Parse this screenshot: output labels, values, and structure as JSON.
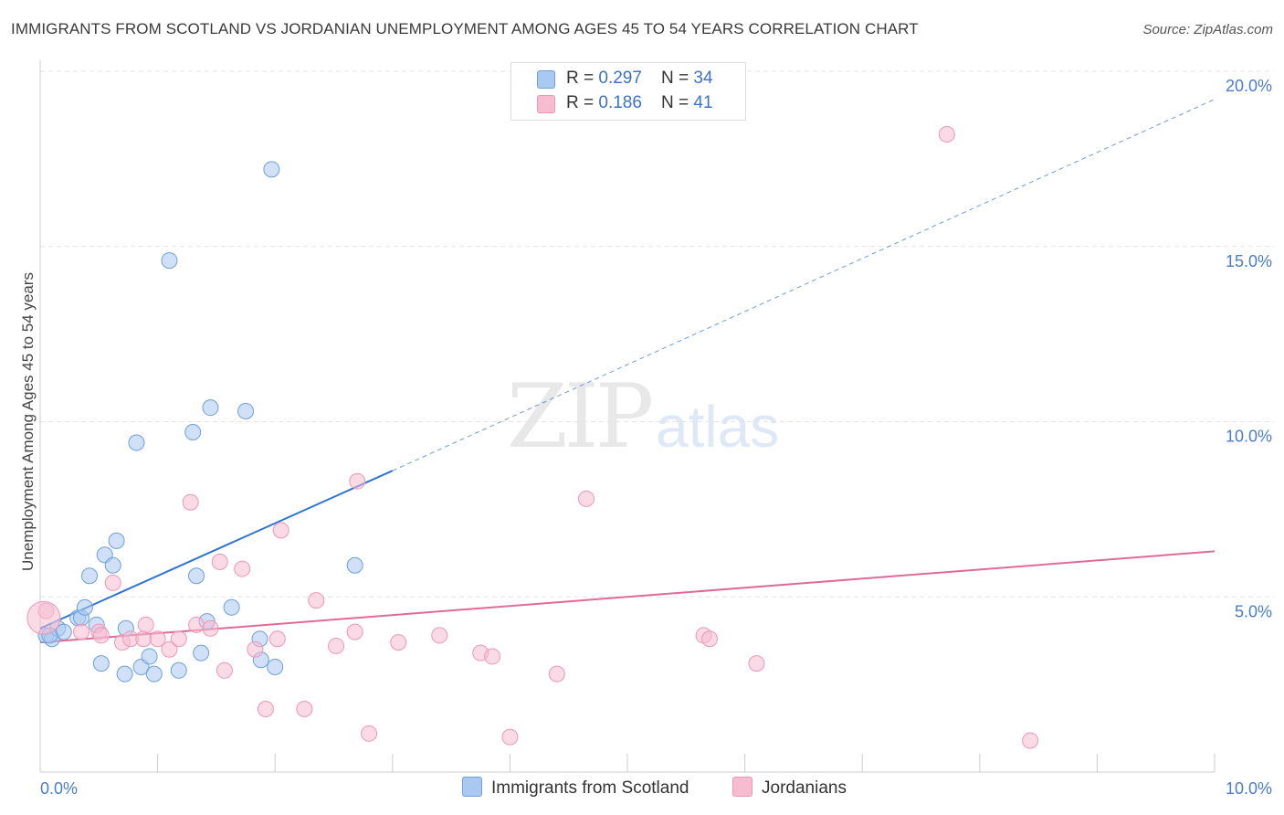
{
  "header": {
    "title": "IMMIGRANTS FROM SCOTLAND VS JORDANIAN UNEMPLOYMENT AMONG AGES 45 TO 54 YEARS CORRELATION CHART",
    "source": "Source: ZipAtlas.com"
  },
  "watermark": {
    "zip": "ZIP",
    "atlas": "atlas"
  },
  "legend": {
    "scotland": {
      "r_label": "R = ",
      "r_value": "0.297",
      "n_label": "N = ",
      "n_value": "34"
    },
    "jordanians": {
      "r_label": "R = ",
      "r_value": "0.186",
      "n_label": "N = ",
      "n_value": "41"
    }
  },
  "bottom_legend": {
    "scotland": "Immigrants from Scotland",
    "jordanians": "Jordanians"
  },
  "colors": {
    "scotland_fill": "#aac8f0",
    "scotland_stroke": "#6f9fdd",
    "scotland_line": "#2f74d0",
    "jordanians_fill": "#f6bcd0",
    "jordanians_stroke": "#ee97b5",
    "jordanians_line": "#e06a96",
    "tick_text": "#4a7ccc",
    "grid": "#e4e4e4"
  },
  "chart_data": {
    "type": "scatter",
    "title": "IMMIGRANTS FROM SCOTLAND VS JORDANIAN UNEMPLOYMENT AMONG AGES 45 TO 54 YEARS CORRELATION CHART",
    "xlabel": "",
    "ylabel": "Unemployment Among Ages 45 to 54 years",
    "xlim": [
      0,
      10
    ],
    "ylim": [
      0,
      20
    ],
    "x_tick_labels": [
      "0.0%",
      "10.0%"
    ],
    "y_ticks": [
      5,
      10,
      15,
      20
    ],
    "y_tick_labels": [
      "5.0%",
      "10.0%",
      "15.0%",
      "20.0%"
    ],
    "grid": true,
    "legend_position": "top-center",
    "series": [
      {
        "name": "Immigrants from Scotland",
        "points": [
          [
            0.05,
            3.9
          ],
          [
            0.1,
            3.8
          ],
          [
            0.15,
            4.1
          ],
          [
            0.2,
            4.0
          ],
          [
            0.32,
            4.4
          ],
          [
            0.35,
            4.4
          ],
          [
            0.38,
            4.7
          ],
          [
            0.42,
            5.6
          ],
          [
            0.48,
            4.2
          ],
          [
            0.52,
            3.1
          ],
          [
            0.55,
            6.2
          ],
          [
            0.62,
            5.9
          ],
          [
            0.65,
            6.6
          ],
          [
            0.72,
            2.8
          ],
          [
            0.73,
            4.1
          ],
          [
            0.82,
            9.4
          ],
          [
            0.86,
            3.0
          ],
          [
            0.93,
            3.3
          ],
          [
            0.97,
            2.8
          ],
          [
            1.1,
            14.6
          ],
          [
            1.18,
            2.9
          ],
          [
            1.3,
            9.7
          ],
          [
            1.33,
            5.6
          ],
          [
            1.37,
            3.4
          ],
          [
            1.42,
            4.3
          ],
          [
            1.45,
            10.4
          ],
          [
            1.63,
            4.7
          ],
          [
            1.75,
            10.3
          ],
          [
            1.87,
            3.8
          ],
          [
            1.88,
            3.2
          ],
          [
            1.97,
            17.2
          ],
          [
            2.0,
            3.0
          ],
          [
            2.68,
            5.9
          ],
          [
            0.08,
            3.9
          ]
        ],
        "trend": {
          "x": [
            0,
            3.0
          ],
          "y": [
            4.1,
            8.6
          ],
          "extrapolated": {
            "x": [
              3.0,
              10.0
            ],
            "y": [
              8.6,
              19.2
            ]
          }
        }
      },
      {
        "name": "Jordanians",
        "points": [
          [
            0.05,
            4.6
          ],
          [
            0.35,
            4.0
          ],
          [
            0.5,
            4.0
          ],
          [
            0.52,
            3.9
          ],
          [
            0.62,
            5.4
          ],
          [
            0.7,
            3.7
          ],
          [
            0.77,
            3.8
          ],
          [
            0.88,
            3.8
          ],
          [
            0.9,
            4.2
          ],
          [
            1.0,
            3.8
          ],
          [
            1.1,
            3.5
          ],
          [
            1.18,
            3.8
          ],
          [
            1.28,
            7.7
          ],
          [
            1.33,
            4.2
          ],
          [
            1.45,
            4.1
          ],
          [
            1.57,
            2.9
          ],
          [
            1.53,
            6.0
          ],
          [
            1.72,
            5.8
          ],
          [
            1.83,
            3.5
          ],
          [
            1.92,
            1.8
          ],
          [
            2.02,
            3.8
          ],
          [
            2.05,
            6.9
          ],
          [
            2.25,
            1.8
          ],
          [
            2.35,
            4.9
          ],
          [
            2.52,
            3.6
          ],
          [
            2.68,
            4.0
          ],
          [
            2.7,
            8.3
          ],
          [
            2.8,
            1.1
          ],
          [
            3.05,
            3.7
          ],
          [
            3.4,
            3.9
          ],
          [
            3.75,
            3.4
          ],
          [
            3.85,
            3.3
          ],
          [
            4.0,
            1.0
          ],
          [
            4.4,
            2.8
          ],
          [
            4.65,
            7.8
          ],
          [
            5.65,
            3.9
          ],
          [
            5.7,
            3.8
          ],
          [
            6.1,
            3.1
          ],
          [
            7.72,
            18.2
          ],
          [
            8.43,
            0.9
          ],
          [
            0.03,
            4.4
          ]
        ],
        "trend": {
          "x": [
            0,
            10.0
          ],
          "y": [
            3.7,
            6.3
          ]
        }
      }
    ]
  }
}
